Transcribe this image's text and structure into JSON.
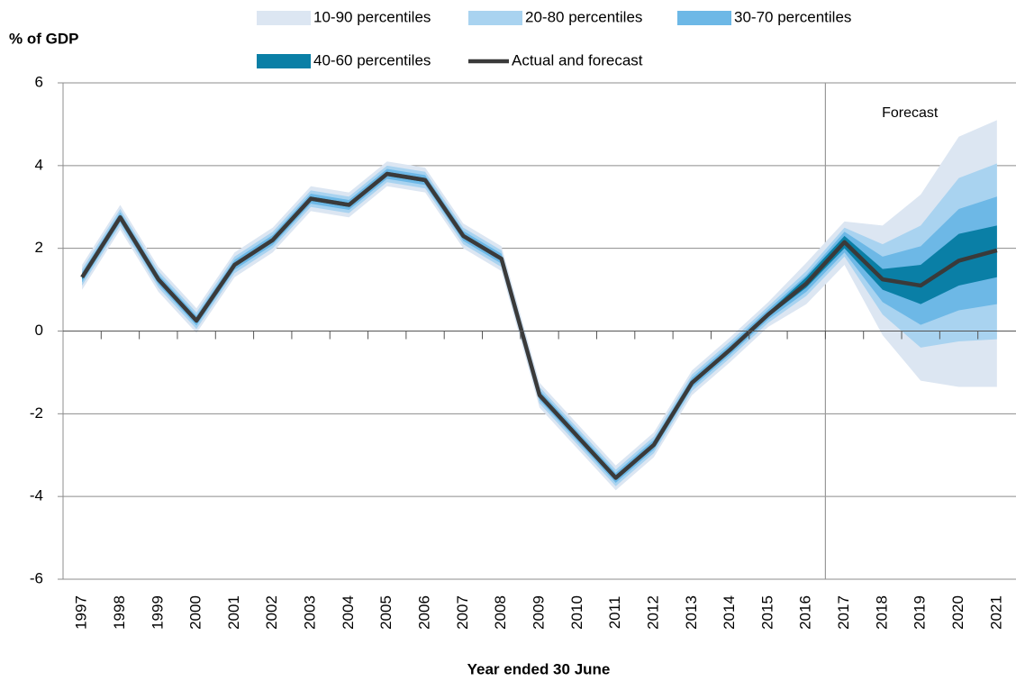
{
  "chart_data": {
    "type": "fan",
    "y_axis_title": "% of GDP",
    "x_axis_title": "Year ended 30 June",
    "annotation": "Forecast",
    "forecast_from": "2017",
    "categories": [
      "1997",
      "1998",
      "1999",
      "2000",
      "2001",
      "2002",
      "2003",
      "2004",
      "2005",
      "2006",
      "2007",
      "2008",
      "2009",
      "2010",
      "2011",
      "2012",
      "2013",
      "2014",
      "2015",
      "2016",
      "2017",
      "2018",
      "2019",
      "2020",
      "2021"
    ],
    "ylim": [
      -6,
      6
    ],
    "yticks": [
      -6,
      -4,
      -2,
      0,
      2,
      4,
      6
    ],
    "grid": true,
    "bands": [
      {
        "name": "10-90 percentiles",
        "color": "#dce6f2",
        "low": [
          1.0,
          2.45,
          0.95,
          -0.05,
          1.3,
          1.9,
          2.9,
          2.75,
          3.5,
          3.35,
          2.0,
          1.45,
          -1.85,
          -2.85,
          -3.85,
          -3.05,
          -1.55,
          -0.75,
          0.1,
          0.65,
          1.6,
          -0.1,
          -1.2,
          -1.35,
          -1.35
        ],
        "high": [
          1.6,
          3.05,
          1.55,
          0.55,
          1.9,
          2.5,
          3.5,
          3.35,
          4.1,
          3.95,
          2.6,
          2.05,
          -1.25,
          -2.25,
          -3.25,
          -2.45,
          -0.95,
          -0.15,
          0.7,
          1.65,
          2.65,
          2.55,
          3.3,
          4.7,
          5.1
        ]
      },
      {
        "name": "20-80 percentiles",
        "color": "#a9d3f0",
        "low": [
          1.1,
          2.55,
          1.05,
          0.05,
          1.4,
          2.0,
          3.0,
          2.85,
          3.6,
          3.45,
          2.1,
          1.55,
          -1.75,
          -2.75,
          -3.75,
          -2.95,
          -1.45,
          -0.65,
          0.2,
          0.85,
          1.8,
          0.4,
          -0.4,
          -0.25,
          -0.2
        ],
        "high": [
          1.5,
          2.95,
          1.45,
          0.45,
          1.8,
          2.4,
          3.4,
          3.25,
          4.0,
          3.85,
          2.5,
          1.95,
          -1.35,
          -2.35,
          -3.35,
          -2.55,
          -1.05,
          -0.25,
          0.6,
          1.45,
          2.5,
          2.1,
          2.55,
          3.7,
          4.05
        ]
      },
      {
        "name": "30-70 percentiles",
        "color": "#6db8e6",
        "low": [
          1.18,
          2.63,
          1.13,
          0.13,
          1.48,
          2.08,
          3.08,
          2.93,
          3.68,
          3.53,
          2.18,
          1.63,
          -1.67,
          -2.67,
          -3.67,
          -2.87,
          -1.37,
          -0.57,
          0.28,
          0.95,
          1.9,
          0.7,
          0.15,
          0.5,
          0.65
        ],
        "high": [
          1.42,
          2.87,
          1.37,
          0.37,
          1.72,
          2.32,
          3.32,
          3.17,
          3.92,
          3.77,
          2.42,
          1.87,
          -1.43,
          -2.43,
          -3.43,
          -2.63,
          -1.13,
          -0.33,
          0.52,
          1.35,
          2.4,
          1.8,
          2.05,
          2.95,
          3.25
        ]
      },
      {
        "name": "40-60 percentiles",
        "color": "#0a7fa6",
        "low": [
          1.25,
          2.7,
          1.2,
          0.2,
          1.55,
          2.15,
          3.15,
          3.0,
          3.75,
          3.6,
          2.25,
          1.7,
          -1.6,
          -2.6,
          -3.6,
          -2.8,
          -1.3,
          -0.5,
          0.35,
          1.05,
          2.0,
          1.0,
          0.65,
          1.1,
          1.3
        ],
        "high": [
          1.35,
          2.8,
          1.3,
          0.3,
          1.65,
          2.25,
          3.25,
          3.1,
          3.85,
          3.7,
          2.35,
          1.8,
          -1.5,
          -2.5,
          -3.5,
          -2.7,
          -1.2,
          -0.4,
          0.45,
          1.3,
          2.3,
          1.5,
          1.6,
          2.35,
          2.55
        ]
      }
    ],
    "series": [
      {
        "name": "Actual and forecast",
        "color": "#3a3a3a",
        "values": [
          1.3,
          2.75,
          1.25,
          0.25,
          1.6,
          2.2,
          3.2,
          3.05,
          3.8,
          3.65,
          2.3,
          1.75,
          -1.55,
          -2.55,
          -3.55,
          -2.75,
          -1.25,
          -0.45,
          0.4,
          1.15,
          2.15,
          1.25,
          1.1,
          1.7,
          1.95
        ]
      }
    ]
  }
}
